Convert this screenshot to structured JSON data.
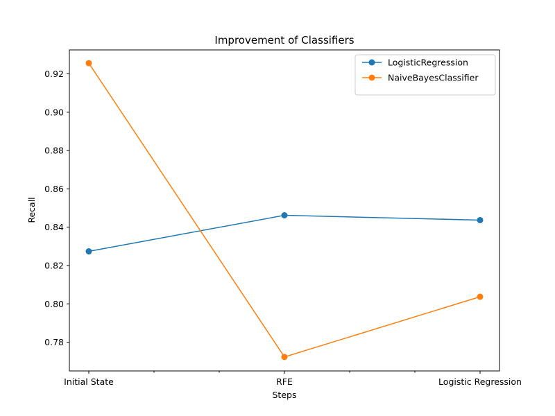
{
  "chart_data": {
    "type": "line",
    "title": "Improvement of Classifiers",
    "xlabel": "Steps",
    "ylabel": "Recall",
    "categories": [
      "Initial State",
      "RFE",
      "Logistic Regression"
    ],
    "ylim": [
      0.765,
      0.9325
    ],
    "yticks": [
      "0.78",
      "0.80",
      "0.82",
      "0.84",
      "0.86",
      "0.88",
      "0.90",
      "0.92"
    ],
    "grid": false,
    "legend_position": "top-right",
    "series": [
      {
        "name": "LogisticRegression",
        "color": "#1f77b4",
        "values": [
          0.8274,
          0.8462,
          0.8437
        ]
      },
      {
        "name": "NaiveBayesClassifier",
        "color": "#ff7f0e",
        "values": [
          0.9256,
          0.7723,
          0.8037
        ]
      }
    ]
  }
}
